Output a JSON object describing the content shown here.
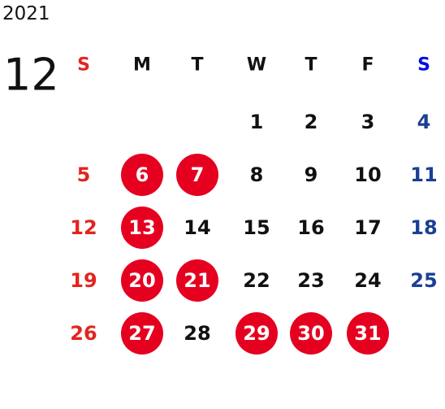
{
  "year": "2021",
  "month": "12",
  "weekdays": [
    "S",
    "M",
    "T",
    "W",
    "T",
    "F",
    "S"
  ],
  "weeks": [
    [
      null,
      null,
      null,
      {
        "day": "1"
      },
      {
        "day": "2"
      },
      {
        "day": "3"
      },
      {
        "day": "4"
      }
    ],
    [
      {
        "day": "5"
      },
      {
        "day": "6",
        "marked": true
      },
      {
        "day": "7",
        "marked": true
      },
      {
        "day": "8"
      },
      {
        "day": "9"
      },
      {
        "day": "10"
      },
      {
        "day": "11"
      }
    ],
    [
      {
        "day": "12"
      },
      {
        "day": "13",
        "marked": true
      },
      {
        "day": "14"
      },
      {
        "day": "15"
      },
      {
        "day": "16"
      },
      {
        "day": "17"
      },
      {
        "day": "18"
      }
    ],
    [
      {
        "day": "19"
      },
      {
        "day": "20",
        "marked": true
      },
      {
        "day": "21",
        "marked": true
      },
      {
        "day": "22"
      },
      {
        "day": "23"
      },
      {
        "day": "24"
      },
      {
        "day": "25"
      }
    ],
    [
      {
        "day": "26"
      },
      {
        "day": "27",
        "marked": true
      },
      {
        "day": "28"
      },
      {
        "day": "29",
        "marked": true
      },
      {
        "day": "30",
        "marked": true
      },
      {
        "day": "31",
        "marked": true
      },
      null
    ]
  ]
}
